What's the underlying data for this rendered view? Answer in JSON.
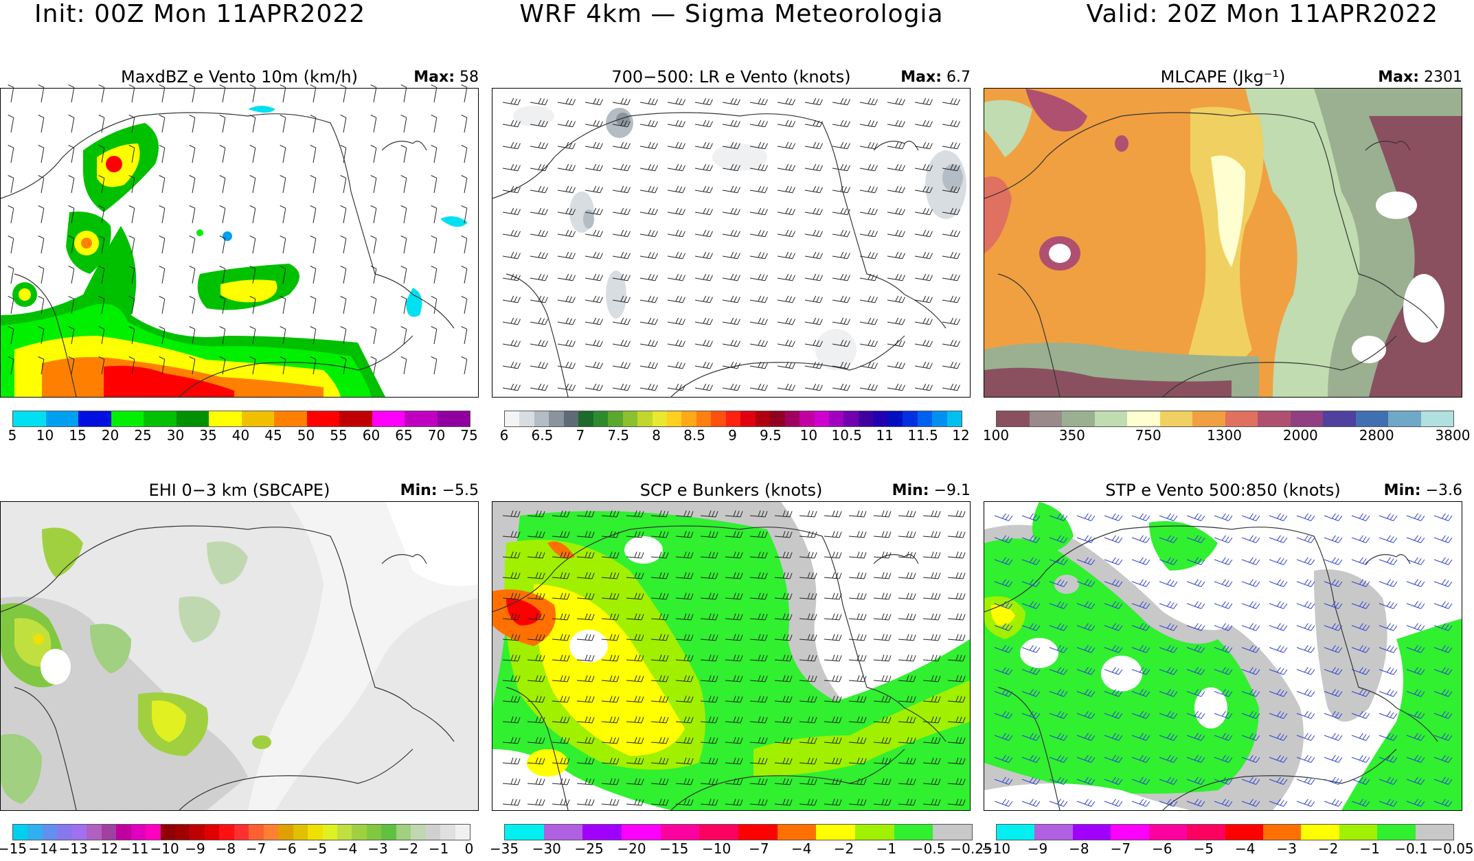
{
  "header": {
    "init": "Init: 00Z Mon 11APR2022",
    "model": "WRF 4km — Sigma Meteorologia",
    "valid": "Valid: 20Z Mon 11APR2022"
  },
  "panels": [
    {
      "title": "MaxdBZ e Vento 10m (km/h)",
      "stat_label": "Max:",
      "stat_value": "58",
      "ticks": [
        "5",
        "10",
        "15",
        "20",
        "25",
        "30",
        "35",
        "40",
        "45",
        "50",
        "55",
        "60",
        "65",
        "70",
        "75"
      ],
      "colors": [
        "#00e0f0",
        "#00a0f0",
        "#0010e0",
        "#00f000",
        "#00c000",
        "#009000",
        "#ffff00",
        "#f0c000",
        "#ff8000",
        "#ff0000",
        "#c00000",
        "#ff00ff",
        "#c000c0",
        "#9000a0"
      ]
    },
    {
      "title": "700−500: LR e Vento (knots)",
      "stat_label": "Max:",
      "stat_value": "6.7",
      "ticks": [
        "6",
        "6.5",
        "7",
        "7.5",
        "8",
        "8.5",
        "9",
        "9.5",
        "10",
        "10.5",
        "11",
        "11.5",
        "12"
      ],
      "colors": [
        "#f4f4f4",
        "#d8dde2",
        "#b4bcc4",
        "#8a949e",
        "#5e6a76",
        "#1c6a2c",
        "#2e8a2e",
        "#5aa82e",
        "#8cc02e",
        "#c0d82e",
        "#e8e830",
        "#ffd020",
        "#ffa818",
        "#ff8010",
        "#ff5010",
        "#ff2010",
        "#e00010",
        "#b00010",
        "#900020",
        "#a00060",
        "#c000a0",
        "#d000d0",
        "#a000c0",
        "#7000b0",
        "#4000a0",
        "#2000b0",
        "#0010c0",
        "#0030e0",
        "#0060f0",
        "#0090f0",
        "#00c0f0"
      ]
    },
    {
      "title": "MLCAPE (Jkg⁻¹)",
      "stat_label": "Max:",
      "stat_value": "2301",
      "ticks": [
        "100",
        "350",
        "750",
        "1300",
        "2000",
        "2800",
        "3800"
      ],
      "colors": [
        "#8a5060",
        "#9a8a8a",
        "#9ab090",
        "#c0dcb0",
        "#fffed0",
        "#f0d060",
        "#f0a040",
        "#e07060",
        "#b05070",
        "#904080",
        "#5040a0",
        "#4070b0",
        "#70a8c8",
        "#b0e0e0"
      ]
    },
    {
      "title": "EHI 0−3 km (SBCAPE)",
      "stat_label": "Min:",
      "stat_value": "−5.5",
      "ticks": [
        "−15",
        "−14",
        "−13",
        "−12",
        "−11",
        "−10",
        "−9",
        "−8",
        "−7",
        "−6",
        "−5",
        "−4",
        "−3",
        "−2",
        "−1",
        "0"
      ],
      "colors": [
        "#00d0f0",
        "#30b0f0",
        "#6090f0",
        "#8878f0",
        "#a070f0",
        "#b060c0",
        "#a040a0",
        "#c000a0",
        "#e000c0",
        "#ff00c0",
        "#900000",
        "#a00000",
        "#c00000",
        "#e00000",
        "#ff1010",
        "#ff3030",
        "#ff6030",
        "#ff8030",
        "#e0a000",
        "#e0c000",
        "#f0e000",
        "#e0f020",
        "#c0e040",
        "#a0d040",
        "#80c840",
        "#60c040",
        "#a0d080",
        "#c0d8b0",
        "#d0d0d0",
        "#e0e0e0",
        "#f0f0f0"
      ]
    },
    {
      "title": "SCP e Bunkers (knots)",
      "stat_label": "Min:",
      "stat_value": "−9.1",
      "ticks": [
        "−35",
        "−30",
        "−25",
        "−20",
        "−15",
        "−10",
        "−7",
        "−4",
        "−2",
        "−1",
        "−0.5",
        "−0.25"
      ],
      "colors": [
        "#00f0f0",
        "#b060e0",
        "#a000ff",
        "#ff00ff",
        "#ff00a0",
        "#ff0060",
        "#ff0000",
        "#ff7000",
        "#ffff00",
        "#a0f000",
        "#30f030",
        "#c8c8c8"
      ]
    },
    {
      "title": "STP e Vento 500:850 (knots)",
      "stat_label": "Min:",
      "stat_value": "−3.6",
      "ticks": [
        "−10",
        "−9",
        "−8",
        "−7",
        "−6",
        "−5",
        "−4",
        "−3",
        "−2",
        "−1",
        "−0.1",
        "−0.05"
      ],
      "colors": [
        "#00f0f0",
        "#b060e0",
        "#a000ff",
        "#ff00ff",
        "#ff00a0",
        "#ff0060",
        "#ff0000",
        "#ff7000",
        "#ffff00",
        "#a0f000",
        "#30f030",
        "#c8c8c8"
      ]
    }
  ]
}
